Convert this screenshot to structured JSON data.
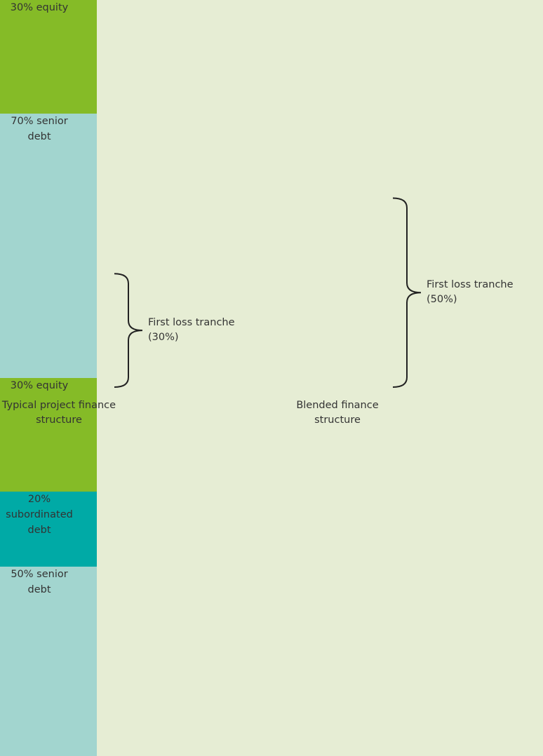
{
  "chart_data": {
    "type": "stacked-bar",
    "categories": [
      "Typical project finance structure",
      "Blended finance structure"
    ],
    "series": [
      {
        "color": "#85bb27",
        "values": [
          30,
          30
        ],
        "value_labels": [
          "30% equity",
          "30% equity"
        ]
      },
      {
        "color": "#00aaa6",
        "values": [
          null,
          20
        ],
        "value_labels": [
          null,
          "20% subordinated debt"
        ]
      },
      {
        "color": "#a2d5cf",
        "values": [
          70,
          50
        ],
        "value_labels": [
          "70% senior debt",
          "50% senior debt"
        ]
      }
    ],
    "ylim": [
      0,
      100
    ],
    "annotations": [
      "First loss tranche (30%)",
      "First loss tranche (50%)"
    ]
  }
}
